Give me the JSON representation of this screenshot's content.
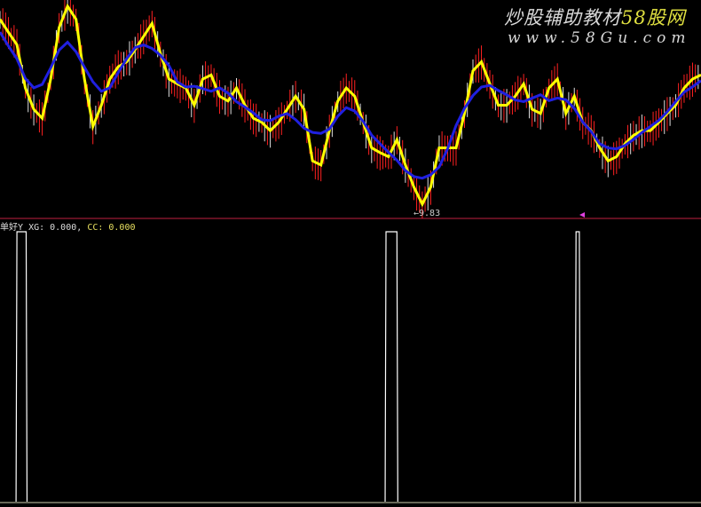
{
  "watermark": {
    "line1_prefix": "炒股辅助教材",
    "line1_brand": "58股网",
    "line2": "www.58Gu.com"
  },
  "indicator": {
    "name": "单好Y",
    "xg_label": "XG: 0.000,",
    "cc_label": "CC: 0.000"
  },
  "low_label": "←9.83",
  "colors": {
    "price_line": "#ffff00",
    "ma_line": "#2020e0",
    "candles": "#ff2020",
    "separator": "#c02040",
    "signal": "#ffffff",
    "marker": "#e040e0"
  },
  "chart_data": [
    {
      "type": "line",
      "title": "",
      "ylim": [
        9.7,
        12.8
      ],
      "low_value": 9.83,
      "series": [
        {
          "color": "#ffff00",
          "values": [
            12.52,
            12.33,
            12.15,
            11.52,
            11.21,
            11.08,
            11.65,
            12.4,
            12.71,
            12.52,
            11.65,
            10.96,
            11.27,
            11.65,
            11.83,
            11.9,
            12.08,
            12.27,
            12.46,
            12.02,
            11.65,
            11.58,
            11.52,
            11.27,
            11.65,
            11.71,
            11.4,
            11.33,
            11.52,
            11.27,
            11.08,
            11.02,
            10.9,
            11.02,
            11.21,
            11.4,
            11.21,
            10.46,
            10.4,
            10.9,
            11.33,
            11.52,
            11.4,
            11.02,
            10.65,
            10.58,
            10.52,
            10.77,
            10.4,
            10.08,
            9.83,
            10.08,
            10.65,
            10.65,
            10.65,
            11.15,
            11.77,
            11.9,
            11.58,
            11.27,
            11.27,
            11.4,
            11.58,
            11.21,
            11.15,
            11.52,
            11.65,
            11.15,
            11.4,
            11.02,
            10.9,
            10.65,
            10.46,
            10.52,
            10.71,
            10.83,
            10.9,
            10.9,
            11.02,
            11.15,
            11.27,
            11.52,
            11.65,
            11.71
          ]
        }
      ]
    },
    {
      "type": "bar",
      "title": "",
      "ylim": [
        0,
        1
      ],
      "signals": [
        {
          "start": 1.9,
          "end": 3.2,
          "value": 1
        },
        {
          "start": 45.6,
          "end": 47.1,
          "value": 1
        },
        {
          "start": 68.1,
          "end": 68.7,
          "value": 1
        }
      ]
    }
  ]
}
